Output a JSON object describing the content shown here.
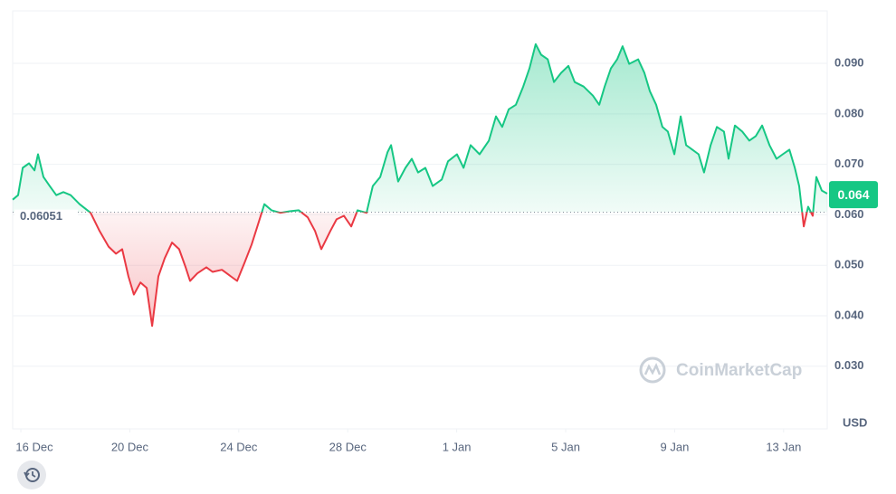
{
  "chart_data": {
    "type": "line",
    "x": [
      -0.3,
      -0.1,
      0.07,
      0.3,
      0.5,
      0.63,
      0.83,
      1.06,
      1.3,
      1.56,
      1.83,
      2.16,
      2.56,
      2.89,
      3.22,
      3.49,
      3.72,
      3.95,
      4.15,
      4.39,
      4.62,
      4.82,
      5.05,
      5.28,
      5.55,
      5.81,
      6.05,
      6.21,
      6.48,
      6.81,
      7.04,
      7.38,
      7.71,
      7.94,
      8.21,
      8.47,
      8.7,
      8.94,
      9.2,
      9.53,
      9.87,
      10.2,
      10.53,
      10.8,
      11.03,
      11.36,
      11.59,
      11.86,
      12.13,
      12.36,
      12.69,
      12.92,
      13.19,
      13.46,
      13.59,
      13.85,
      14.12,
      14.35,
      14.58,
      14.85,
      15.12,
      15.45,
      15.68,
      16.01,
      16.25,
      16.51,
      16.84,
      17.18,
      17.44,
      17.67,
      17.91,
      18.17,
      18.44,
      18.67,
      18.9,
      19.1,
      19.34,
      19.57,
      19.83,
      20.1,
      20.33,
      20.66,
      21.0,
      21.23,
      21.43,
      21.66,
      21.89,
      22.09,
      22.33,
      22.66,
      22.89,
      23.09,
      23.32,
      23.55,
      23.75,
      23.99,
      24.22,
      24.42,
      24.65,
      24.88,
      25.08,
      25.32,
      25.55,
      25.81,
      25.98,
      26.21,
      26.48,
      26.74,
      26.98,
      27.21,
      27.48,
      27.74,
      27.97,
      28.21,
      28.41,
      28.57,
      28.74,
      28.9,
      29.07,
      29.2,
      29.4,
      29.6
    ],
    "values": [
      0.063,
      0.0639,
      0.0693,
      0.0702,
      0.0688,
      0.072,
      0.0675,
      0.0657,
      0.0639,
      0.0645,
      0.0639,
      0.0621,
      0.0604,
      0.0568,
      0.0537,
      0.0523,
      0.0532,
      0.0478,
      0.0442,
      0.0466,
      0.0455,
      0.038,
      0.0478,
      0.0514,
      0.0545,
      0.0532,
      0.0496,
      0.0469,
      0.0484,
      0.0496,
      0.0487,
      0.0491,
      0.0478,
      0.0469,
      0.0505,
      0.0541,
      0.058,
      0.0621,
      0.0609,
      0.0604,
      0.0607,
      0.0609,
      0.0595,
      0.0568,
      0.0532,
      0.0568,
      0.0591,
      0.0598,
      0.0577,
      0.0609,
      0.0604,
      0.0657,
      0.0675,
      0.0724,
      0.0738,
      0.0666,
      0.0693,
      0.0711,
      0.0684,
      0.0693,
      0.0657,
      0.067,
      0.0706,
      0.072,
      0.0693,
      0.0738,
      0.072,
      0.0747,
      0.0795,
      0.0774,
      0.0809,
      0.0818,
      0.0854,
      0.089,
      0.0938,
      0.0917,
      0.0908,
      0.0863,
      0.0881,
      0.0895,
      0.0863,
      0.0854,
      0.0836,
      0.0818,
      0.0854,
      0.089,
      0.0908,
      0.0934,
      0.0899,
      0.0908,
      0.0881,
      0.0845,
      0.0818,
      0.0774,
      0.0765,
      0.072,
      0.0795,
      0.0738,
      0.0729,
      0.072,
      0.0684,
      0.0738,
      0.0774,
      0.0765,
      0.0711,
      0.0777,
      0.0765,
      0.0747,
      0.0756,
      0.0777,
      0.0738,
      0.0711,
      0.072,
      0.0729,
      0.0693,
      0.0657,
      0.0577,
      0.0616,
      0.0598,
      0.0675,
      0.0648,
      0.0642
    ],
    "up_color": "#16c784",
    "down_color": "#ea3943",
    "baseline": 0.06051,
    "last_price": 0.064,
    "currency": "USD",
    "watermark": "CoinMarketCap",
    "xlim": [
      -0.3,
      29.6
    ],
    "xticks": [
      {
        "value": 0,
        "label": "16 Dec"
      },
      {
        "value": 4,
        "label": "20 Dec"
      },
      {
        "value": 8,
        "label": "24 Dec"
      },
      {
        "value": 12,
        "label": "28 Dec"
      },
      {
        "value": 16,
        "label": "1 Jan"
      },
      {
        "value": 20,
        "label": "5 Jan"
      },
      {
        "value": 24,
        "label": "9 Jan"
      },
      {
        "value": 28,
        "label": "13 Jan"
      }
    ],
    "ylim": [
      0.0176,
      0.1004
    ],
    "yticks": [
      {
        "value": 0.03,
        "label": "0.030"
      },
      {
        "value": 0.04,
        "label": "0.040"
      },
      {
        "value": 0.05,
        "label": "0.050"
      },
      {
        "value": 0.06,
        "label": "0.060"
      },
      {
        "value": 0.07,
        "label": "0.070"
      },
      {
        "value": 0.08,
        "label": "0.080"
      },
      {
        "value": 0.09,
        "label": "0.090"
      }
    ],
    "grid": true
  }
}
